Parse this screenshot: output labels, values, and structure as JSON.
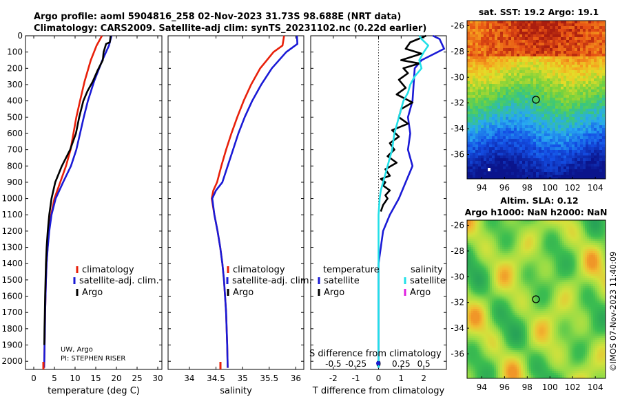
{
  "header": {
    "line1": "Argo profile: aoml 5904816_258 02-Nov-2023 31.73S 98.688E (NRT data)",
    "line2": "Climatology: CARS2009. Satellite-adj clim: synTS_20231102.nc (0.22d earlier)"
  },
  "credit": {
    "line1": "UW, Argo",
    "line2": "PI: STEPHEN RISER"
  },
  "timestamp": "©IMOS 07-Nov-2023 11:40:09",
  "colors": {
    "red": "#e8200a",
    "blue": "#1a1ad6",
    "black": "#000000",
    "cyan": "#22e0e8",
    "magenta": "#e020e0"
  },
  "chart_data": [
    {
      "type": "line",
      "title": "",
      "xlabel": "temperature (deg C)",
      "ylabel": "",
      "xlim": [
        -2,
        31
      ],
      "ylim": [
        2050,
        0
      ],
      "xticks": [
        0,
        5,
        10,
        15,
        20,
        25,
        30
      ],
      "yticks": [
        0,
        100,
        200,
        300,
        400,
        500,
        600,
        700,
        800,
        900,
        1000,
        1100,
        1200,
        1300,
        1400,
        1500,
        1600,
        1700,
        1800,
        1900,
        2000
      ],
      "legend": [
        "climatology",
        "satellite-adj. clim.",
        "Argo"
      ],
      "series": [
        {
          "name": "climatology",
          "color": "#e8200a",
          "x": [
            16.5,
            15.2,
            13.8,
            12.3,
            11.2,
            10.3,
            9.6,
            8.9,
            7.8,
            6.4,
            5.0,
            4.2,
            3.7,
            3.35,
            3.1,
            2.95,
            2.85,
            2.75,
            2.7,
            2.62,
            2.55,
            2.5
          ],
          "y": [
            0,
            60,
            150,
            280,
            400,
            500,
            600,
            700,
            800,
            900,
            1000,
            1100,
            1200,
            1300,
            1400,
            1500,
            1600,
            1700,
            1800,
            1900,
            2000,
            2040
          ]
        },
        {
          "name": "satellite-adj. clim.",
          "color": "#1a1ad6",
          "x": [
            18.8,
            18.2,
            16.6,
            14.6,
            13.1,
            12.1,
            11.2,
            10.3,
            9.0,
            7.1,
            5.3,
            4.3,
            3.75,
            3.38,
            3.1,
            2.95,
            2.85,
            2.75,
            2.7,
            2.62,
            2.55,
            2.5
          ],
          "y": [
            0,
            60,
            150,
            280,
            400,
            500,
            600,
            700,
            800,
            900,
            1000,
            1100,
            1200,
            1300,
            1400,
            1500,
            1600,
            1700,
            1800,
            1900,
            2000,
            2040
          ]
        },
        {
          "name": "Argo",
          "color": "#000000",
          "x": [
            18.6,
            18.4,
            17.5,
            16.9,
            16.7,
            15.5,
            14.3,
            13.0,
            12.0,
            11.0,
            10.2,
            8.8,
            6.8,
            5.2,
            4.3,
            3.75,
            3.38,
            3.12,
            2.95,
            2.85,
            2.75,
            2.68,
            2.6,
            2.55
          ],
          "y": [
            0,
            40,
            50,
            100,
            150,
            210,
            280,
            340,
            400,
            500,
            600,
            700,
            800,
            900,
            1000,
            1100,
            1200,
            1300,
            1400,
            1500,
            1600,
            1700,
            1800,
            1900
          ]
        }
      ],
      "text_labels": []
    },
    {
      "type": "line",
      "title": "",
      "xlabel": "salinity",
      "ylabel": "",
      "xlim": [
        33.6,
        36.15
      ],
      "ylim": [
        2050,
        0
      ],
      "xticks": [
        34,
        34.5,
        35,
        35.5,
        36
      ],
      "yticks": [],
      "legend": [
        "climatology",
        "satellite-adj. clim.",
        "Argo"
      ],
      "series": [
        {
          "name": "climatology",
          "color": "#e8200a",
          "x": [
            35.78,
            35.75,
            35.58,
            35.33,
            35.16,
            35.02,
            34.9,
            34.79,
            34.69,
            34.6,
            34.52,
            34.45,
            34.42,
            34.47,
            34.53,
            34.58,
            34.62,
            34.65,
            34.67,
            34.69,
            34.7,
            34.71,
            34.72
          ],
          "y": [
            0,
            60,
            100,
            200,
            300,
            400,
            500,
            600,
            700,
            800,
            900,
            950,
            1000,
            1100,
            1200,
            1300,
            1400,
            1500,
            1600,
            1700,
            1800,
            1900,
            2040
          ]
        },
        {
          "name": "satellite-adj. clim.",
          "color": "#1a1ad6",
          "x": [
            36.02,
            36.03,
            35.82,
            35.55,
            35.35,
            35.18,
            35.04,
            34.92,
            34.82,
            34.72,
            34.62,
            34.5,
            34.43,
            34.47,
            34.53,
            34.58,
            34.62,
            34.65,
            34.67,
            34.69,
            34.7,
            34.71,
            34.72
          ],
          "y": [
            0,
            50,
            100,
            200,
            300,
            400,
            500,
            600,
            700,
            800,
            900,
            950,
            1000,
            1100,
            1200,
            1300,
            1400,
            1500,
            1600,
            1700,
            1800,
            1900,
            2040
          ]
        }
      ],
      "text_labels": []
    },
    {
      "type": "line",
      "title": "",
      "xlabel": "T difference from climatology",
      "ylabel": "",
      "xlim": [
        -3,
        3
      ],
      "ylim": [
        2050,
        0
      ],
      "xticks": [
        -2,
        -1,
        0,
        1,
        2
      ],
      "yticks": [],
      "top_xlabel": "S difference from climatology",
      "top_ticks": [
        "-0.5",
        "-0.25",
        "0",
        "0.25",
        "0.5"
      ],
      "top_tick_values": [
        -2,
        -1,
        0,
        1,
        2
      ],
      "legend_left_title": "temperature",
      "legend_right_title": "salinity",
      "legend": [
        "satellite",
        "Argo",
        "satellite",
        "Argo"
      ],
      "series": [
        {
          "name": "T satellite",
          "color": "#1a1ad6",
          "x": [
            2.4,
            2.7,
            2.9,
            1.9,
            1.6,
            1.5,
            1.3,
            1.4,
            1.3,
            1.5,
            1.2,
            0.9,
            0.5,
            0.2,
            0.1,
            0.0,
            0.0,
            0.0,
            0.0,
            0.0,
            0.0,
            0.0,
            0.0
          ],
          "y": [
            0,
            20,
            80,
            150,
            200,
            400,
            500,
            600,
            700,
            800,
            900,
            1000,
            1100,
            1200,
            1300,
            1400,
            1500,
            1600,
            1700,
            1800,
            1900,
            2000,
            2040
          ]
        },
        {
          "name": "T Argo",
          "color": "#000000",
          "x": [
            2.1,
            1.4,
            1.2,
            1.9,
            1.0,
            1.8,
            1.1,
            1.3,
            0.9,
            1.2,
            0.8,
            1.5,
            1.0,
            0.9,
            1.3,
            0.6,
            0.9,
            0.5,
            0.7,
            0.4,
            0.8,
            0.3,
            0.5,
            0.1,
            0.3,
            0.2,
            0.5,
            0.3,
            0.4,
            0.2,
            0.1
          ],
          "y": [
            0,
            40,
            80,
            110,
            150,
            170,
            200,
            230,
            270,
            320,
            360,
            410,
            450,
            500,
            540,
            580,
            620,
            660,
            700,
            740,
            780,
            820,
            860,
            880,
            900,
            920,
            950,
            980,
            1000,
            1040,
            1080
          ]
        },
        {
          "name": "S satellite",
          "color": "#22e0e8",
          "x": [
            1.8,
            1.9,
            2.2,
            2.0,
            1.8,
            1.9,
            1.6,
            1.4,
            1.3,
            1.1,
            1.0,
            0.9,
            0.8,
            0.7,
            0.65,
            0.6,
            0.5,
            0.4,
            0.3,
            0.2,
            0.1,
            0.05,
            0.0,
            0.0,
            0.0,
            0.0,
            0.0
          ],
          "y": [
            0,
            20,
            60,
            100,
            150,
            200,
            250,
            300,
            350,
            400,
            450,
            500,
            550,
            600,
            650,
            700,
            750,
            800,
            850,
            900,
            950,
            1000,
            1100,
            1200,
            1500,
            1800,
            2040
          ]
        }
      ],
      "text_labels": []
    }
  ],
  "maps": [
    {
      "title": "sat. SST: 19.2 Argo: 19.1",
      "xticks": [
        "94",
        "96",
        "98",
        "100",
        "102",
        "104"
      ],
      "yticks": [
        "-26",
        "-28",
        "-30",
        "-32",
        "-34",
        "-36"
      ]
    },
    {
      "title_line1": "Altim. SLA: 0.12",
      "title_line2": "Argo h1000: NaN h2000: NaN",
      "xticks": [
        "94",
        "96",
        "98",
        "100",
        "102",
        "104"
      ],
      "yticks": [
        "-26",
        "-28",
        "-30",
        "-32",
        "-34",
        "-36"
      ]
    }
  ]
}
